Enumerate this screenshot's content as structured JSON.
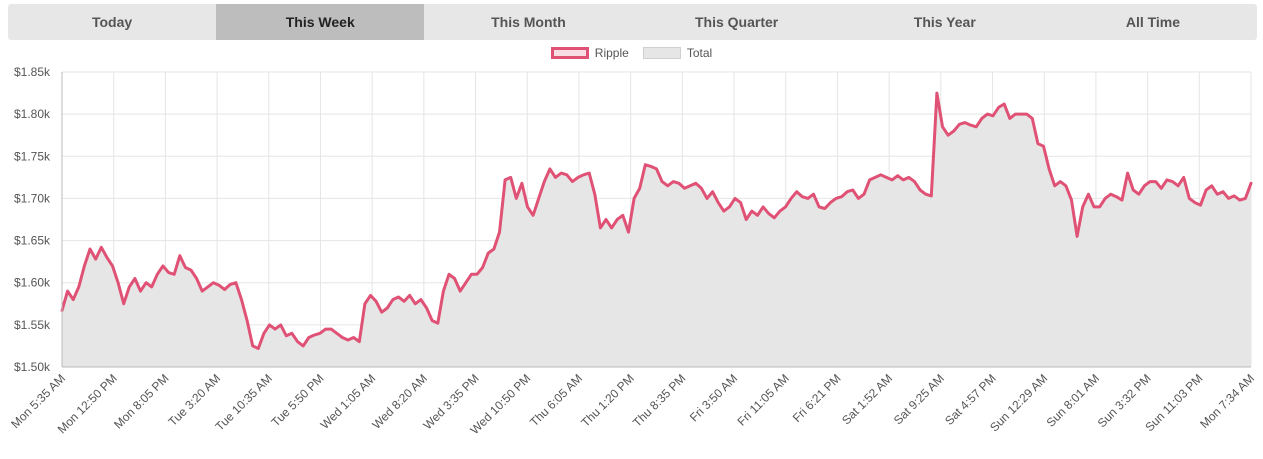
{
  "tabs": [
    {
      "label": "Today",
      "active": false
    },
    {
      "label": "This Week",
      "active": true
    },
    {
      "label": "This Month",
      "active": false
    },
    {
      "label": "This Quarter",
      "active": false
    },
    {
      "label": "This Year",
      "active": false
    },
    {
      "label": "All Time",
      "active": false
    }
  ],
  "legend": [
    {
      "label": "Ripple",
      "color": "#e05275"
    },
    {
      "label": "Total",
      "color": "#e6e6e6"
    }
  ],
  "chart_data": {
    "type": "area",
    "ylim": [
      1500,
      1850
    ],
    "y_ticks": [
      {
        "value": 1850,
        "label": "$1.85k"
      },
      {
        "value": 1800,
        "label": "$1.80k"
      },
      {
        "value": 1750,
        "label": "$1.75k"
      },
      {
        "value": 1700,
        "label": "$1.70k"
      },
      {
        "value": 1650,
        "label": "$1.65k"
      },
      {
        "value": 1600,
        "label": "$1.60k"
      },
      {
        "value": 1550,
        "label": "$1.55k"
      },
      {
        "value": 1500,
        "label": "$1.50k"
      }
    ],
    "x_ticks": [
      "Mon 5:35 AM",
      "Mon 12:50 PM",
      "Mon 8:05 PM",
      "Tue 3:20 AM",
      "Tue 10:35 AM",
      "Tue 5:50 PM",
      "Wed 1:05 AM",
      "Wed 8:20 AM",
      "Wed 3:35 PM",
      "Wed 10:50 PM",
      "Thu 6:05 AM",
      "Thu 1:20 PM",
      "Thu 8:35 PM",
      "Fri 3:50 AM",
      "Fri 11:05 AM",
      "Fri 6:21 PM",
      "Sat 1:52 AM",
      "Sat 9:25 AM",
      "Sat 4:57 PM",
      "Sun 12:29 AM",
      "Sun 8:01 AM",
      "Sun 3:32 PM",
      "Sun 11:03 PM",
      "Mon 7:34 AM"
    ],
    "series": [
      {
        "name": "Ripple",
        "color": "#e05275",
        "values": [
          1567,
          1590,
          1580,
          1595,
          1620,
          1640,
          1628,
          1642,
          1630,
          1620,
          1600,
          1575,
          1595,
          1605,
          1590,
          1600,
          1595,
          1610,
          1620,
          1612,
          1610,
          1632,
          1618,
          1615,
          1605,
          1590,
          1595,
          1600,
          1597,
          1592,
          1598,
          1600,
          1580,
          1555,
          1525,
          1522,
          1540,
          1550,
          1545,
          1550,
          1537,
          1540,
          1530,
          1525,
          1535,
          1538,
          1540,
          1545,
          1545,
          1540,
          1535,
          1532,
          1535,
          1530,
          1575,
          1585,
          1578,
          1565,
          1570,
          1580,
          1583,
          1578,
          1585,
          1575,
          1580,
          1570,
          1555,
          1552,
          1590,
          1610,
          1605,
          1590,
          1600,
          1610,
          1610,
          1618,
          1635,
          1640,
          1660,
          1722,
          1725,
          1700,
          1718,
          1690,
          1680,
          1700,
          1720,
          1735,
          1725,
          1730,
          1728,
          1720,
          1725,
          1728,
          1730,
          1705,
          1665,
          1675,
          1665,
          1675,
          1680,
          1660,
          1700,
          1712,
          1740,
          1738,
          1735,
          1720,
          1715,
          1720,
          1718,
          1712,
          1715,
          1718,
          1712,
          1700,
          1708,
          1695,
          1685,
          1690,
          1700,
          1695,
          1675,
          1685,
          1680,
          1690,
          1682,
          1677,
          1685,
          1690,
          1700,
          1708,
          1702,
          1700,
          1705,
          1690,
          1688,
          1695,
          1700,
          1702,
          1708,
          1710,
          1700,
          1705,
          1722,
          1725,
          1728,
          1725,
          1722,
          1727,
          1722,
          1725,
          1720,
          1710,
          1705,
          1703,
          1825,
          1785,
          1775,
          1780,
          1788,
          1790,
          1787,
          1785,
          1795,
          1800,
          1798,
          1808,
          1812,
          1795,
          1800,
          1800,
          1800,
          1795,
          1765,
          1762,
          1735,
          1715,
          1720,
          1715,
          1698,
          1655,
          1690,
          1705,
          1690,
          1690,
          1700,
          1705,
          1702,
          1698,
          1730,
          1710,
          1705,
          1715,
          1720,
          1720,
          1712,
          1722,
          1720,
          1715,
          1725,
          1700,
          1695,
          1692,
          1710,
          1715,
          1705,
          1708,
          1700,
          1703,
          1698,
          1700,
          1718
        ]
      }
    ]
  }
}
